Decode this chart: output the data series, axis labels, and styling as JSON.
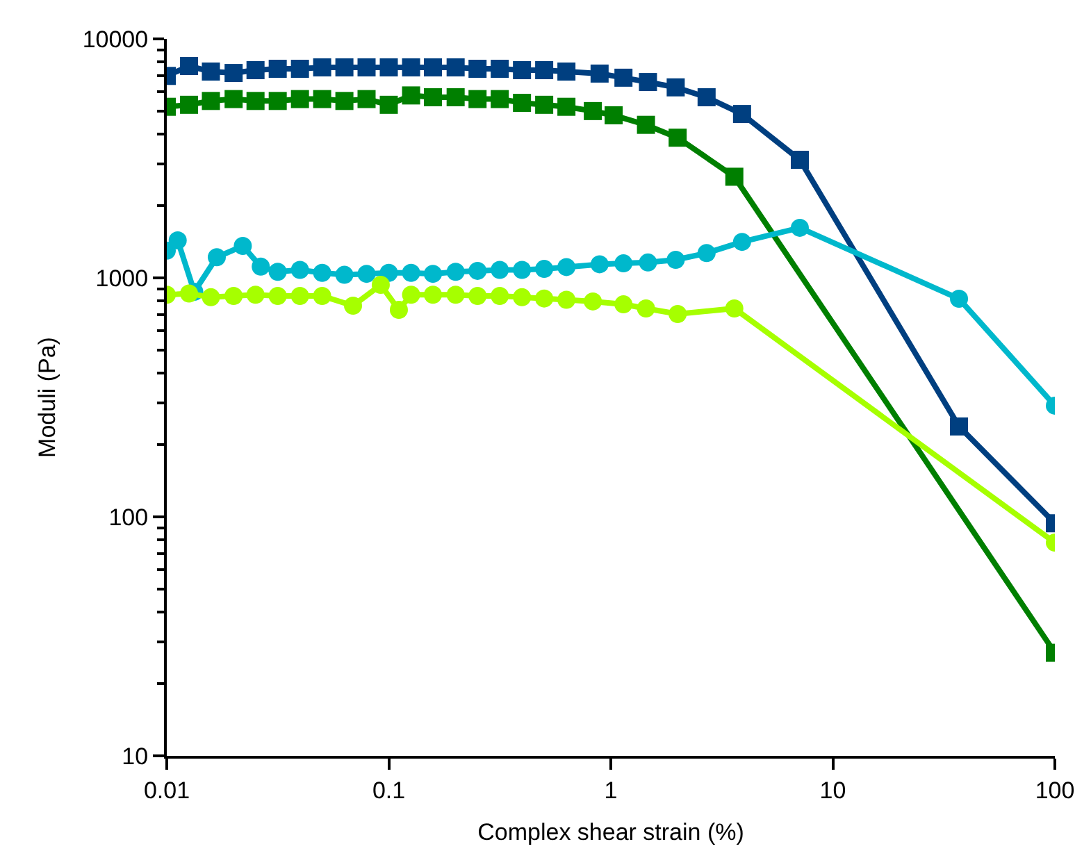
{
  "chart_data": {
    "type": "line",
    "xlabel": "Complex shear strain (%)",
    "ylabel": "Moduli (Pa)",
    "log": "xy",
    "xlim": [
      0.01,
      100
    ],
    "ylim": [
      10,
      10000
    ],
    "xticks": [
      0.01,
      0.1,
      1,
      10,
      100
    ],
    "yticks": [
      10,
      100,
      1000,
      10000
    ],
    "line_style": "solid",
    "series": [
      {
        "color": "#003f80",
        "marker": "square",
        "x": [
          0.01,
          0.0126,
          0.0158,
          0.02,
          0.0251,
          0.0316,
          0.0398,
          0.0501,
          0.0631,
          0.0794,
          0.1,
          0.126,
          0.158,
          0.2,
          0.251,
          0.316,
          0.398,
          0.501,
          0.631,
          0.89,
          1.14,
          1.47,
          1.96,
          2.7,
          3.9,
          7.1,
          37,
          100
        ],
        "values": [
          7000,
          7700,
          7300,
          7200,
          7400,
          7500,
          7500,
          7600,
          7600,
          7600,
          7600,
          7600,
          7600,
          7600,
          7500,
          7500,
          7400,
          7400,
          7300,
          7160,
          6880,
          6600,
          6270,
          5700,
          4850,
          3120,
          239,
          94
        ]
      },
      {
        "color": "#007f00",
        "marker": "square",
        "x": [
          0.01,
          0.0126,
          0.0158,
          0.02,
          0.0251,
          0.0316,
          0.0398,
          0.0501,
          0.0631,
          0.0794,
          0.1,
          0.126,
          0.158,
          0.2,
          0.251,
          0.316,
          0.398,
          0.501,
          0.631,
          0.83,
          1.03,
          1.44,
          2.0,
          3.6,
          100
        ],
        "values": [
          5200,
          5300,
          5500,
          5600,
          5500,
          5500,
          5600,
          5600,
          5500,
          5600,
          5300,
          5800,
          5700,
          5700,
          5600,
          5600,
          5400,
          5300,
          5200,
          4990,
          4790,
          4370,
          3860,
          2650,
          27
        ]
      },
      {
        "color": "#00b8cc",
        "marker": "circle",
        "x": [
          0.01,
          0.0112,
          0.0133,
          0.0168,
          0.022,
          0.0265,
          0.0316,
          0.0398,
          0.0501,
          0.0631,
          0.0794,
          0.1,
          0.126,
          0.158,
          0.2,
          0.251,
          0.316,
          0.398,
          0.501,
          0.631,
          0.89,
          1.14,
          1.47,
          1.96,
          2.7,
          3.9,
          7.1,
          37,
          100
        ],
        "values": [
          1300,
          1435,
          875,
          1220,
          1360,
          1115,
          1060,
          1080,
          1050,
          1030,
          1040,
          1050,
          1050,
          1040,
          1060,
          1070,
          1080,
          1080,
          1090,
          1110,
          1140,
          1150,
          1160,
          1190,
          1270,
          1415,
          1620,
          818,
          292
        ]
      },
      {
        "color": "#a6ff00",
        "marker": "circle",
        "x": [
          0.01,
          0.0126,
          0.0158,
          0.02,
          0.0251,
          0.0316,
          0.0398,
          0.0501,
          0.069,
          0.092,
          0.111,
          0.126,
          0.158,
          0.2,
          0.251,
          0.316,
          0.398,
          0.501,
          0.631,
          0.83,
          1.14,
          1.44,
          2.0,
          3.6,
          100
        ],
        "values": [
          850,
          860,
          830,
          840,
          850,
          840,
          840,
          840,
          765,
          935,
          735,
          850,
          850,
          850,
          840,
          840,
          830,
          820,
          810,
          797,
          775,
          745,
          706,
          745,
          78
        ]
      }
    ]
  }
}
